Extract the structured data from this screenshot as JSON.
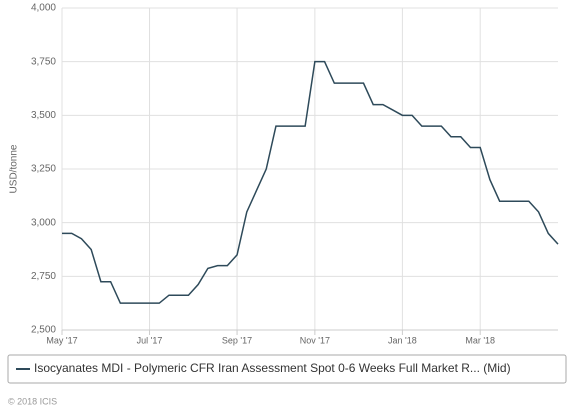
{
  "chart_data": {
    "type": "line",
    "y_label": "USD/tonne",
    "categories": [
      "May '17",
      null,
      null,
      null,
      null,
      null,
      null,
      null,
      null,
      "Jul '17",
      null,
      null,
      null,
      null,
      null,
      null,
      null,
      null,
      "Sep '17",
      null,
      null,
      null,
      null,
      null,
      null,
      null,
      "Nov '17",
      null,
      null,
      null,
      null,
      null,
      null,
      null,
      null,
      "Jan '18",
      null,
      null,
      null,
      null,
      null,
      null,
      null,
      "Mar '18",
      null,
      null,
      null,
      null,
      null,
      null,
      null,
      null
    ],
    "series": [
      {
        "name": "Isocyanates MDI - Polymeric CFR Iran Assessment Spot 0-6 Weeks Full Market R... (Mid)",
        "color": "#2e4a5a",
        "values": [
          2950,
          2950,
          2925,
          2875,
          2725,
          2725,
          2625,
          2625,
          2625,
          2625,
          2625,
          2662,
          2662,
          2662,
          2712,
          2787,
          2800,
          2800,
          2850,
          3050,
          3150,
          3250,
          3450,
          3450,
          3450,
          3450,
          3750,
          3750,
          3650,
          3650,
          3650,
          3650,
          3550,
          3550,
          3525,
          3500,
          3500,
          3450,
          3450,
          3450,
          3400,
          3400,
          3350,
          3350,
          3200,
          3100,
          3100,
          3100,
          3100,
          3050,
          2950,
          2900
        ]
      }
    ],
    "ylim": [
      2500,
      4000
    ],
    "yticks": [
      {
        "value": 2500,
        "label": "2,500"
      },
      {
        "value": 2750,
        "label": "2,750"
      },
      {
        "value": 3000,
        "label": "3,000"
      },
      {
        "value": 3250,
        "label": "3,250"
      },
      {
        "value": 3500,
        "label": "3,500"
      },
      {
        "value": 3750,
        "label": "3,750"
      },
      {
        "value": 4000,
        "label": "4,000"
      }
    ],
    "grid": true,
    "footer": "© 2018 ICIS"
  }
}
